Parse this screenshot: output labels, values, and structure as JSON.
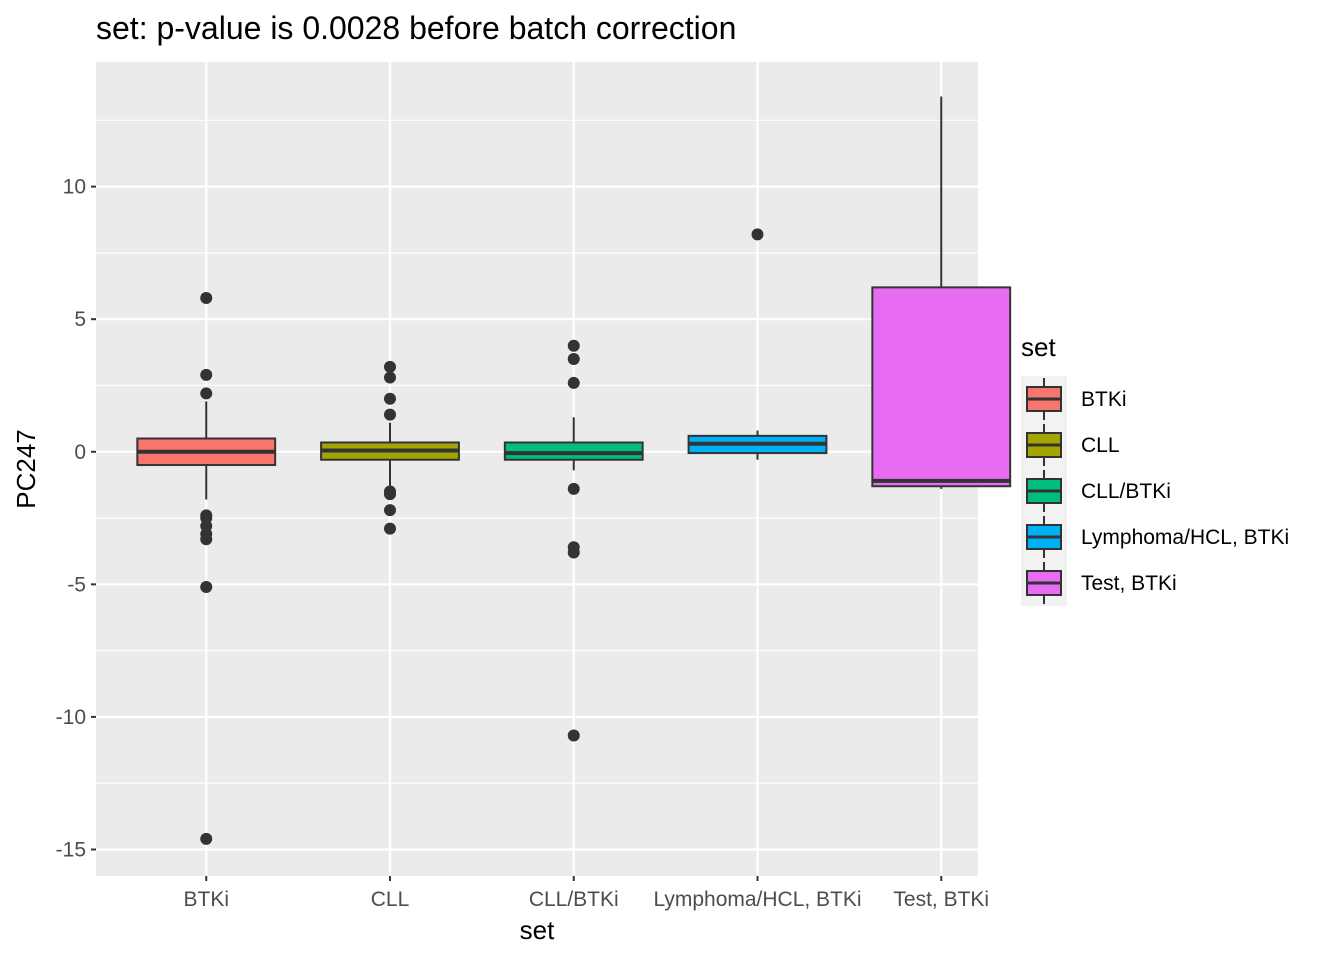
{
  "chart_data": {
    "type": "boxplot",
    "title": "set: p-value is 0.0028 before batch correction",
    "xlabel": "set",
    "ylabel": "PC247",
    "ylim": [
      -16.0,
      14.7
    ],
    "yticks": [
      -15,
      -10,
      -5,
      0,
      5,
      10
    ],
    "ytick_labels": [
      "-15",
      "-10",
      "-5",
      "0",
      "5",
      "10"
    ],
    "grid": true,
    "legend": {
      "title": "set",
      "position": "right",
      "entries": [
        "BTKi",
        "CLL",
        "CLL/BTKi",
        "Lymphoma/HCL, BTKi",
        "Test, BTKi"
      ]
    },
    "categories": [
      "BTKi",
      "CLL",
      "CLL/BTKi",
      "Lymphoma/HCL, BTKi",
      "Test, BTKi"
    ],
    "boxes": [
      {
        "category": "BTKi",
        "color": "#F8766D",
        "whisker_low": -1.8,
        "q1": -0.5,
        "median": 0.0,
        "q3": 0.5,
        "whisker_high": 1.9,
        "outliers": [
          5.8,
          2.9,
          2.2,
          -2.4,
          -2.5,
          -2.8,
          -3.1,
          -3.3,
          -5.1,
          -14.6
        ]
      },
      {
        "category": "CLL",
        "color": "#A3A500",
        "whisker_low": -1.3,
        "q1": -0.3,
        "median": 0.05,
        "q3": 0.35,
        "whisker_high": 1.1,
        "outliers": [
          3.2,
          2.8,
          2.0,
          1.4,
          -1.5,
          -1.6,
          -2.2,
          -2.9
        ]
      },
      {
        "category": "CLL/BTKi",
        "color": "#00BF7D",
        "whisker_low": -0.7,
        "q1": -0.3,
        "median": -0.05,
        "q3": 0.35,
        "whisker_high": 1.3,
        "outliers": [
          4.0,
          3.5,
          2.6,
          -1.4,
          -3.6,
          -3.8,
          -10.7
        ]
      },
      {
        "category": "Lymphoma/HCL, BTKi",
        "color": "#00B0F6",
        "whisker_low": -0.3,
        "q1": -0.05,
        "median": 0.3,
        "q3": 0.6,
        "whisker_high": 0.8,
        "outliers": [
          8.2
        ]
      },
      {
        "category": "Test, BTKi",
        "color": "#E76BF3",
        "whisker_low": -1.4,
        "q1": -1.3,
        "median": -1.1,
        "q3": 6.2,
        "whisker_high": 13.4,
        "outliers": []
      }
    ]
  }
}
